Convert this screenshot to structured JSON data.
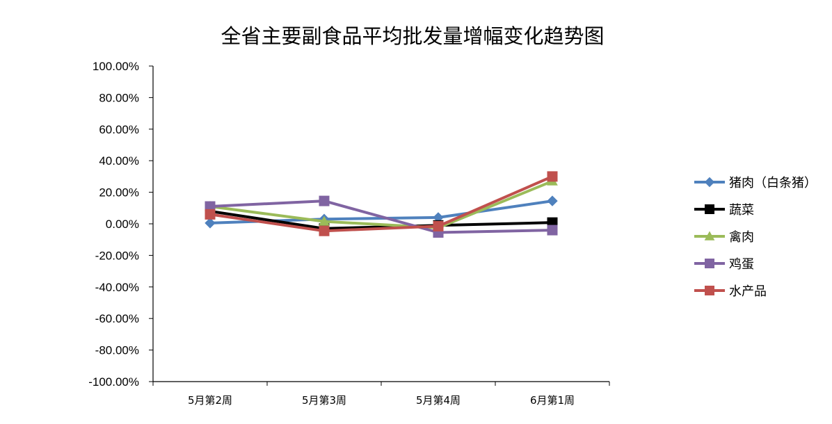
{
  "chart_data": {
    "type": "line",
    "title": "全省主要副食品平均批发量增幅变化趋势图",
    "xlabel": "",
    "ylabel": "",
    "categories": [
      "5月第2周",
      "5月第3周",
      "5月第4周",
      "6月第1周"
    ],
    "ylim": [
      -100,
      100
    ],
    "yticks": [
      100,
      80,
      60,
      40,
      20,
      0,
      -20,
      -40,
      -60,
      -80,
      -100
    ],
    "ytick_labels": [
      "100.00%",
      "80.00%",
      "60.00%",
      "40.00%",
      "20.00%",
      "0.00%",
      "-20.00%",
      "-40.00%",
      "-60.00%",
      "-80.00%",
      "-100.00%"
    ],
    "grid": false,
    "legend_position": "right",
    "series": [
      {
        "name": "猪肉（白条猪）",
        "color": "#4f81bd",
        "marker": "diamond",
        "values": [
          0.5,
          3.0,
          4.0,
          14.5
        ]
      },
      {
        "name": "蔬菜",
        "color": "#000000",
        "marker": "square",
        "values": [
          8.0,
          -3.0,
          -1.0,
          0.8
        ]
      },
      {
        "name": "禽肉",
        "color": "#9bbb59",
        "marker": "triangle",
        "values": [
          11.0,
          1.5,
          -2.5,
          27.0
        ]
      },
      {
        "name": "鸡蛋",
        "color": "#8064a2",
        "marker": "square",
        "values": [
          11.0,
          14.5,
          -5.5,
          -4.0
        ]
      },
      {
        "name": "水产品",
        "color": "#c0504d",
        "marker": "square",
        "values": [
          6.0,
          -4.5,
          -1.5,
          30.0
        ]
      }
    ]
  }
}
